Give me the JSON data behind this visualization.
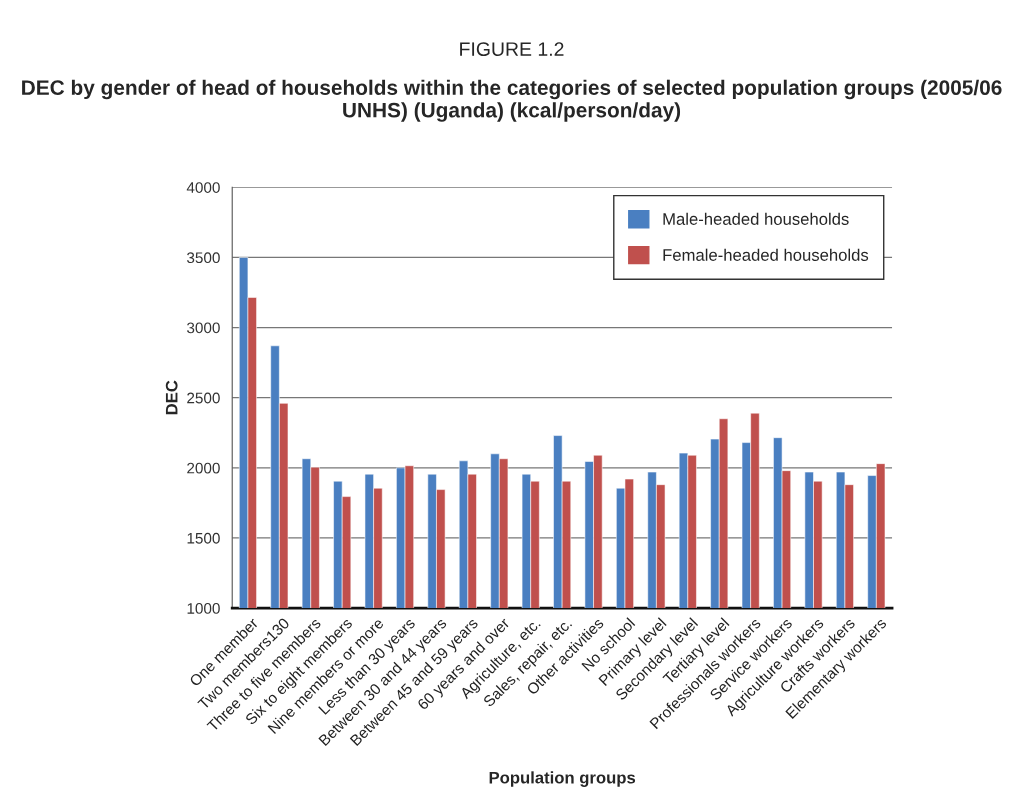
{
  "chart_data": {
    "type": "bar",
    "title": "FIGURE 1.2",
    "subtitle": "DEC by gender of head of households within the categories of selected population groups (2005/06 UNHS) (Uganda) (kcal/person/day)",
    "xlabel": "Population groups",
    "ylabel": "DEC",
    "categories": [
      "One member",
      "Two members130",
      "Three to five members",
      "Six to eight members",
      "Nine members or more",
      "Less than 30 years",
      "Between 30 and 44 years",
      "Between 45 and 59 years",
      "60 years and over",
      "Agriculture, etc.",
      "Sales, repair, etc.",
      "Other activities",
      "No school",
      "Primary level",
      "Secondary level",
      "Tertiary level",
      "Professionals workers",
      "Service workers",
      "Agriculture workers",
      "Crafts workers",
      "Elementary workers"
    ],
    "series": [
      {
        "name": "Male-headed households",
        "color": "#4a7fc1",
        "values": [
          3500,
          2870,
          2065,
          1905,
          1955,
          2000,
          1955,
          2050,
          2100,
          1955,
          2230,
          2045,
          1855,
          1970,
          2105,
          2205,
          2180,
          2215,
          1970,
          1970,
          1945
        ]
      },
      {
        "name": "Female-headed households",
        "color": "#c0504d",
        "values": [
          3215,
          2460,
          2005,
          1795,
          1855,
          2015,
          1845,
          1955,
          2065,
          1905,
          1905,
          2090,
          1920,
          1880,
          2090,
          2350,
          2390,
          1980,
          1905,
          1880,
          2030
        ]
      }
    ],
    "ylim": [
      1000,
      4000
    ],
    "yticks": [
      1000,
      1500,
      2000,
      2500,
      3000,
      3500,
      4000
    ],
    "grid": "y",
    "legend": "top right"
  }
}
